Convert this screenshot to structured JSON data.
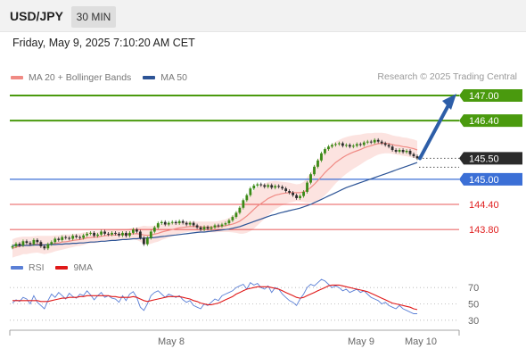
{
  "header": {
    "pair": "USD/JPY",
    "timeframe": "30 MIN",
    "timestamp": "Friday, May 9, 2025 7:10:20 AM CET"
  },
  "legend": {
    "ma20_label": "MA 20 + Bollinger Bands",
    "ma50_label": "MA 50",
    "ma20_color": "#f08a84",
    "ma50_color": "#2d5496",
    "copyright": "Research © 2025 Trading Central"
  },
  "rsi_legend": {
    "rsi_label": "RSI",
    "ma9_label": "9MA",
    "rsi_color": "#5a7fd6",
    "ma9_color": "#e01818"
  },
  "chart_data": [
    {
      "type": "line",
      "x_ticks": [
        "May 8",
        "May 9",
        "May 10"
      ],
      "ylim": [
        143.1,
        147.15
      ],
      "levels": [
        {
          "value": 147.0,
          "label": "147.00",
          "kind": "resistance",
          "color": "#4a9a0e"
        },
        {
          "value": 146.4,
          "label": "146.40",
          "kind": "resistance",
          "color": "#4a9a0e"
        },
        {
          "value": 145.5,
          "label": "145.50",
          "kind": "current",
          "color": "#2b2b2b"
        },
        {
          "value": 145.0,
          "label": "145.00",
          "kind": "pivot",
          "color": "#3b6fd6"
        },
        {
          "value": 144.4,
          "label": "144.40",
          "kind": "support",
          "color": "#e02020"
        },
        {
          "value": 143.8,
          "label": "143.80",
          "kind": "support",
          "color": "#e02020"
        }
      ],
      "arrow": {
        "from": 145.5,
        "to": 147.0,
        "color": "#2d5ea8"
      },
      "candles_close": [
        143.4,
        143.46,
        143.42,
        143.52,
        143.48,
        143.45,
        143.55,
        143.5,
        143.4,
        143.35,
        143.45,
        143.5,
        143.58,
        143.55,
        143.62,
        143.6,
        143.58,
        143.65,
        143.62,
        143.6,
        143.66,
        143.7,
        143.72,
        143.65,
        143.68,
        143.75,
        143.7,
        143.68,
        143.72,
        143.7,
        143.66,
        143.72,
        143.65,
        143.72,
        143.8,
        143.75,
        143.6,
        143.45,
        143.6,
        143.75,
        143.85,
        143.95,
        143.98,
        143.92,
        143.96,
        143.98,
        143.95,
        144.0,
        143.96,
        143.92,
        143.96,
        143.9,
        143.85,
        143.8,
        143.86,
        143.82,
        143.85,
        143.9,
        143.88,
        143.92,
        143.95,
        144.02,
        144.1,
        144.2,
        144.32,
        144.5,
        144.62,
        144.78,
        144.85,
        144.88,
        144.86,
        144.82,
        144.86,
        144.8,
        144.84,
        144.82,
        144.78,
        144.72,
        144.68,
        144.62,
        144.55,
        144.6,
        144.7,
        144.92,
        145.12,
        145.3,
        145.45,
        145.62,
        145.72,
        145.78,
        145.82,
        145.84,
        145.86,
        145.8,
        145.82,
        145.78,
        145.8,
        145.84,
        145.82,
        145.88,
        145.9,
        145.88,
        145.94,
        145.9,
        145.86,
        145.82,
        145.78,
        145.7,
        145.66,
        145.7,
        145.65,
        145.68,
        145.6,
        145.55,
        145.5
      ],
      "ma20": [
        143.35,
        143.38,
        143.4,
        143.42,
        143.42,
        143.43,
        143.44,
        143.45,
        143.44,
        143.43,
        143.44,
        143.45,
        143.47,
        143.48,
        143.5,
        143.51,
        143.52,
        143.54,
        143.55,
        143.56,
        143.58,
        143.6,
        143.61,
        143.62,
        143.62,
        143.64,
        143.65,
        143.66,
        143.67,
        143.67,
        143.68,
        143.68,
        143.68,
        143.69,
        143.7,
        143.7,
        143.69,
        143.67,
        143.66,
        143.67,
        143.69,
        143.71,
        143.74,
        143.76,
        143.78,
        143.8,
        143.82,
        143.84,
        143.85,
        143.86,
        143.87,
        143.87,
        143.87,
        143.86,
        143.86,
        143.86,
        143.86,
        143.86,
        143.87,
        143.88,
        143.89,
        143.91,
        143.93,
        143.96,
        144.0,
        144.06,
        144.12,
        144.2,
        144.28,
        144.36,
        144.42,
        144.48,
        144.54,
        144.58,
        144.62,
        144.64,
        144.66,
        144.67,
        144.68,
        144.68,
        144.68,
        144.68,
        144.7,
        144.74,
        144.8,
        144.88,
        144.97,
        145.06,
        145.16,
        145.24,
        145.32,
        145.4,
        145.46,
        145.52,
        145.57,
        145.61,
        145.65,
        145.68,
        145.71,
        145.75,
        145.78,
        145.8,
        145.83,
        145.85,
        145.86,
        145.86,
        145.85,
        145.83,
        145.81,
        145.8,
        145.78,
        145.77,
        145.75,
        145.73,
        145.7
      ],
      "ma50": [
        143.42,
        143.42,
        143.42,
        143.42,
        143.42,
        143.42,
        143.43,
        143.43,
        143.43,
        143.43,
        143.44,
        143.44,
        143.44,
        143.45,
        143.45,
        143.46,
        143.46,
        143.47,
        143.47,
        143.48,
        143.48,
        143.49,
        143.5,
        143.5,
        143.51,
        143.52,
        143.52,
        143.53,
        143.54,
        143.54,
        143.55,
        143.56,
        143.56,
        143.57,
        143.58,
        143.58,
        143.59,
        143.59,
        143.6,
        143.6,
        143.61,
        143.62,
        143.63,
        143.64,
        143.65,
        143.66,
        143.67,
        143.68,
        143.69,
        143.7,
        143.71,
        143.72,
        143.73,
        143.74,
        143.74,
        143.75,
        143.76,
        143.77,
        143.78,
        143.79,
        143.8,
        143.81,
        143.83,
        143.85,
        143.87,
        143.9,
        143.93,
        143.96,
        143.99,
        144.02,
        144.05,
        144.08,
        144.11,
        144.14,
        144.16,
        144.19,
        144.21,
        144.23,
        144.25,
        144.27,
        144.29,
        144.31,
        144.34,
        144.37,
        144.4,
        144.44,
        144.48,
        144.52,
        144.56,
        144.6,
        144.64,
        144.68,
        144.72,
        144.76,
        144.8,
        144.83,
        144.86,
        144.89,
        144.92,
        144.95,
        144.98,
        145.01,
        145.04,
        145.07,
        145.1,
        145.13,
        145.16,
        145.19,
        145.22,
        145.25,
        145.28,
        145.31,
        145.34,
        145.37,
        145.4
      ],
      "bollinger_width": [
        0.22,
        0.22,
        0.22,
        0.21,
        0.21,
        0.2,
        0.2,
        0.2,
        0.21,
        0.22,
        0.21,
        0.2,
        0.19,
        0.18,
        0.18,
        0.17,
        0.16,
        0.16,
        0.15,
        0.15,
        0.15,
        0.14,
        0.14,
        0.14,
        0.13,
        0.13,
        0.13,
        0.13,
        0.12,
        0.12,
        0.12,
        0.12,
        0.12,
        0.13,
        0.14,
        0.15,
        0.18,
        0.22,
        0.22,
        0.21,
        0.2,
        0.2,
        0.19,
        0.18,
        0.17,
        0.16,
        0.15,
        0.14,
        0.13,
        0.13,
        0.12,
        0.12,
        0.12,
        0.13,
        0.13,
        0.13,
        0.13,
        0.13,
        0.13,
        0.14,
        0.15,
        0.17,
        0.2,
        0.24,
        0.3,
        0.36,
        0.4,
        0.44,
        0.46,
        0.46,
        0.44,
        0.42,
        0.4,
        0.37,
        0.34,
        0.31,
        0.28,
        0.26,
        0.24,
        0.22,
        0.2,
        0.21,
        0.24,
        0.3,
        0.36,
        0.42,
        0.48,
        0.52,
        0.54,
        0.54,
        0.52,
        0.5,
        0.48,
        0.46,
        0.44,
        0.42,
        0.4,
        0.38,
        0.36,
        0.34,
        0.32,
        0.3,
        0.28,
        0.26,
        0.25,
        0.24,
        0.23,
        0.22,
        0.22,
        0.22,
        0.22,
        0.22,
        0.22,
        0.22,
        0.22
      ]
    },
    {
      "type": "line",
      "title": "RSI",
      "ylim": [
        20,
        80
      ],
      "y_ticks": [
        70,
        50,
        30
      ],
      "series": [
        {
          "name": "RSI",
          "values": [
            51,
            55,
            53,
            58,
            56,
            50,
            60,
            52,
            48,
            44,
            54,
            62,
            58,
            64,
            60,
            56,
            63,
            59,
            57,
            62,
            60,
            66,
            61,
            55,
            60,
            64,
            58,
            60,
            57,
            56,
            52,
            60,
            54,
            62,
            65,
            58,
            46,
            42,
            50,
            60,
            64,
            66,
            62,
            58,
            62,
            60,
            58,
            60,
            55,
            52,
            54,
            48,
            46,
            44,
            50,
            48,
            52,
            56,
            54,
            60,
            62,
            64,
            66,
            70,
            72,
            74,
            68,
            76,
            73,
            75,
            70,
            68,
            72,
            64,
            70,
            68,
            62,
            58,
            54,
            52,
            48,
            56,
            62,
            70,
            74,
            72,
            76,
            80,
            78,
            74,
            70,
            72,
            70,
            66,
            68,
            64,
            66,
            68,
            64,
            66,
            62,
            58,
            56,
            54,
            50,
            52,
            48,
            46,
            44,
            48,
            44,
            42,
            40,
            38,
            38
          ]
        },
        {
          "name": "9MA",
          "values": [
            54,
            54,
            54,
            54,
            54,
            54,
            54,
            54,
            53,
            53,
            53,
            54,
            55,
            56,
            57,
            57,
            58,
            58,
            58,
            59,
            59,
            60,
            60,
            60,
            60,
            60,
            60,
            60,
            59,
            59,
            58,
            58,
            58,
            58,
            59,
            58,
            56,
            54,
            53,
            54,
            55,
            56,
            57,
            58,
            59,
            59,
            59,
            59,
            58,
            57,
            56,
            54,
            53,
            51,
            50,
            49,
            49,
            50,
            51,
            53,
            55,
            57,
            59,
            62,
            64,
            66,
            68,
            69,
            70,
            71,
            71,
            71,
            71,
            70,
            69,
            68,
            66,
            64,
            62,
            60,
            58,
            57,
            58,
            60,
            62,
            64,
            66,
            68,
            70,
            72,
            73,
            73,
            73,
            72,
            71,
            70,
            69,
            68,
            67,
            66,
            65,
            63,
            61,
            59,
            57,
            55,
            53,
            51,
            50,
            49,
            48,
            47,
            46,
            44,
            43
          ]
        }
      ]
    }
  ]
}
